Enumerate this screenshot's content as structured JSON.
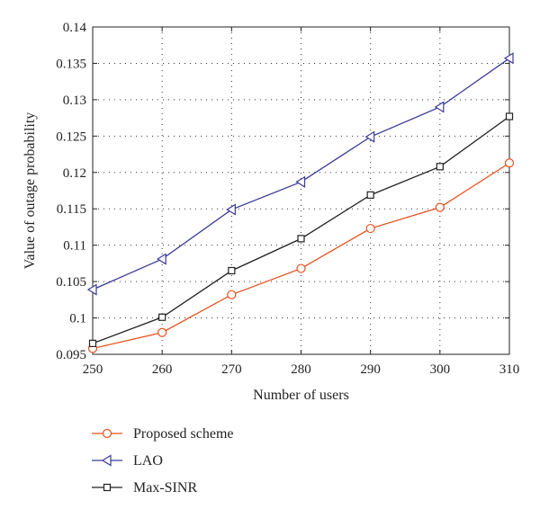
{
  "chart_data": {
    "type": "line",
    "title": "",
    "xlabel": "Number of users",
    "ylabel": "Value of outage probability",
    "x": [
      250,
      260,
      270,
      280,
      290,
      300,
      310
    ],
    "xlim": [
      250,
      310
    ],
    "ylim": [
      0.095,
      0.14
    ],
    "x_tick_labels": [
      "250",
      "260",
      "270",
      "280",
      "290",
      "300",
      "310"
    ],
    "y_ticks": [
      0.095,
      0.1,
      0.105,
      0.11,
      0.115,
      0.12,
      0.125,
      0.13,
      0.135,
      0.14
    ],
    "y_tick_labels": [
      "0.095",
      "0.1",
      "0.105",
      "0.11",
      "0.115",
      "0.12",
      "0.125",
      "0.13",
      "0.135",
      "0.14"
    ],
    "grid": true,
    "legend_position": "below plot",
    "series": [
      {
        "name": "Proposed scheme",
        "values": [
          0.0958,
          0.098,
          0.1032,
          0.1068,
          0.1123,
          0.1152,
          0.1213
        ],
        "color": "#e8501e",
        "marker": "circle"
      },
      {
        "name": "LAO",
        "values": [
          0.1039,
          0.1081,
          0.1149,
          0.1187,
          0.1249,
          0.129,
          0.1357
        ],
        "color": "#3a3a9a",
        "marker": "triangle-left"
      },
      {
        "name": "Max-SINR",
        "values": [
          0.0965,
          0.1001,
          0.1065,
          0.1109,
          0.1169,
          0.1208,
          0.1277
        ],
        "color": "#222222",
        "marker": "square"
      }
    ]
  }
}
